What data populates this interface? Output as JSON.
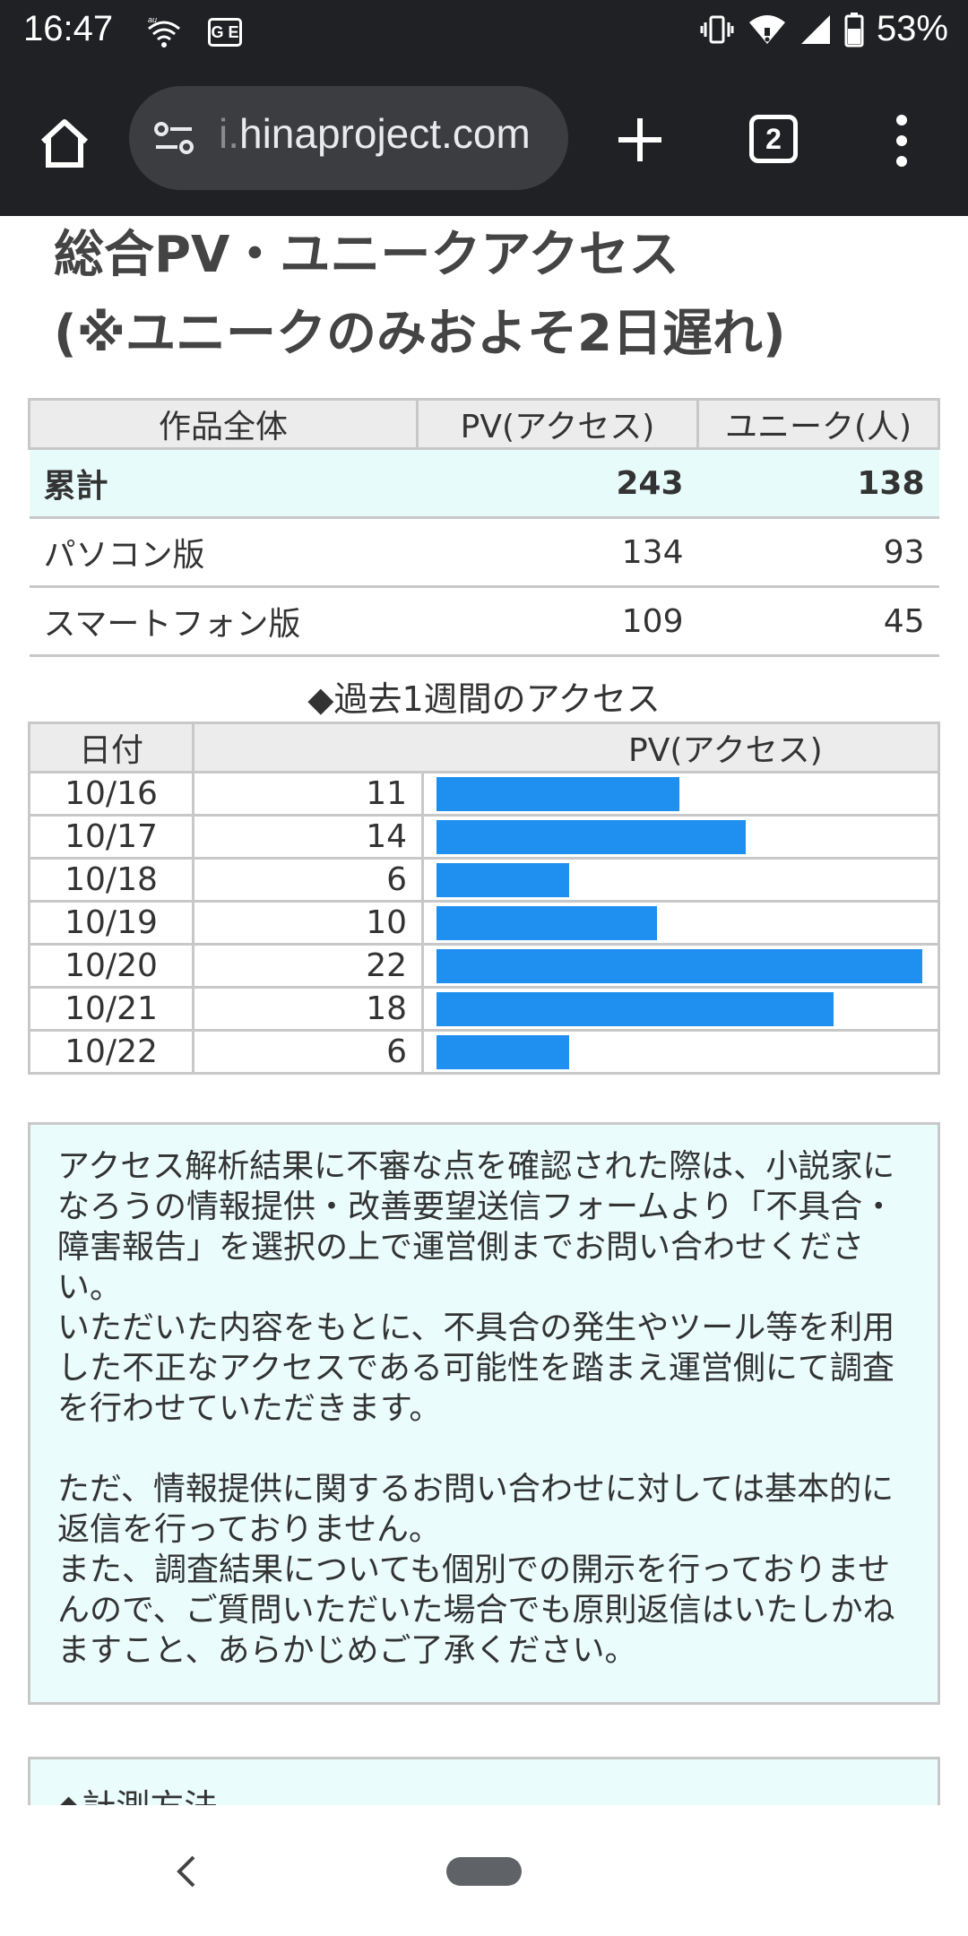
{
  "status_bar": {
    "time": "16:47",
    "carrier_badge": "G E",
    "battery_percent": "53%"
  },
  "browser": {
    "url_prefix": "i.",
    "url_domain": "hinaproject.com",
    "tab_count": "2"
  },
  "page": {
    "title_line1": "総合PV・ユニークアクセス",
    "title_line2": "(※ユニークのみおよそ2日遅れ)",
    "summary": {
      "headers": [
        "作品全体",
        "PV(アクセス)",
        "ユニーク(人)"
      ],
      "rows": [
        {
          "label": "累計",
          "pv": "243",
          "unique": "138"
        },
        {
          "label": "パソコン版",
          "pv": "134",
          "unique": "93"
        },
        {
          "label": "スマートフォン版",
          "pv": "109",
          "unique": "45"
        }
      ]
    },
    "weekly": {
      "title": "◆過去1週間のアクセス",
      "headers": [
        "日付",
        "PV(アクセス)"
      ],
      "rows": [
        {
          "date": "10/16",
          "pv": "11"
        },
        {
          "date": "10/17",
          "pv": "14"
        },
        {
          "date": "10/18",
          "pv": "6"
        },
        {
          "date": "10/19",
          "pv": "10"
        },
        {
          "date": "10/20",
          "pv": "22"
        },
        {
          "date": "10/21",
          "pv": "18"
        },
        {
          "date": "10/22",
          "pv": "6"
        }
      ]
    },
    "notice": {
      "paragraph1": "アクセス解析結果に不審な点を確認された際は、小説家になろうの情報提供・改善要望送信フォームより「不具合・障害報告」を選択の上で運営側までお問い合わせください。\nいただいた内容をもとに、不具合の発生やツール等を利用した不正なアクセスである可能性を踏まえ運営側にて調査を行わせていただきます。",
      "paragraph2": "ただ、情報提供に関するお問い合わせに対しては基本的に返信を行っておりません。\nまた、調査結果についても個別での開示を行っておりませんので、ご質問いただいた場合でも原則返信はいたしかねますこと、あらかじめご了承ください。"
    },
    "method_title": "◆計測方法"
  },
  "chart_data": {
    "type": "bar",
    "categories": [
      "10/16",
      "10/17",
      "10/18",
      "10/19",
      "10/20",
      "10/21",
      "10/22"
    ],
    "values": [
      11,
      14,
      6,
      10,
      22,
      18,
      6
    ],
    "ylabel": "PV(アクセス)"
  },
  "colors": {
    "bar": "#1f8ff0",
    "header_bg": "#ececec",
    "total_row_bg": "#e8fbfb",
    "notice_bg": "#eafcfc",
    "chrome_bg": "#202124"
  },
  "icons": [
    "home-icon",
    "tune-icon",
    "plus-icon",
    "tab-switcher-icon",
    "more-vert-icon",
    "vibrate-icon",
    "wifi-icon",
    "signal-icon",
    "battery-icon",
    "back-icon"
  ]
}
